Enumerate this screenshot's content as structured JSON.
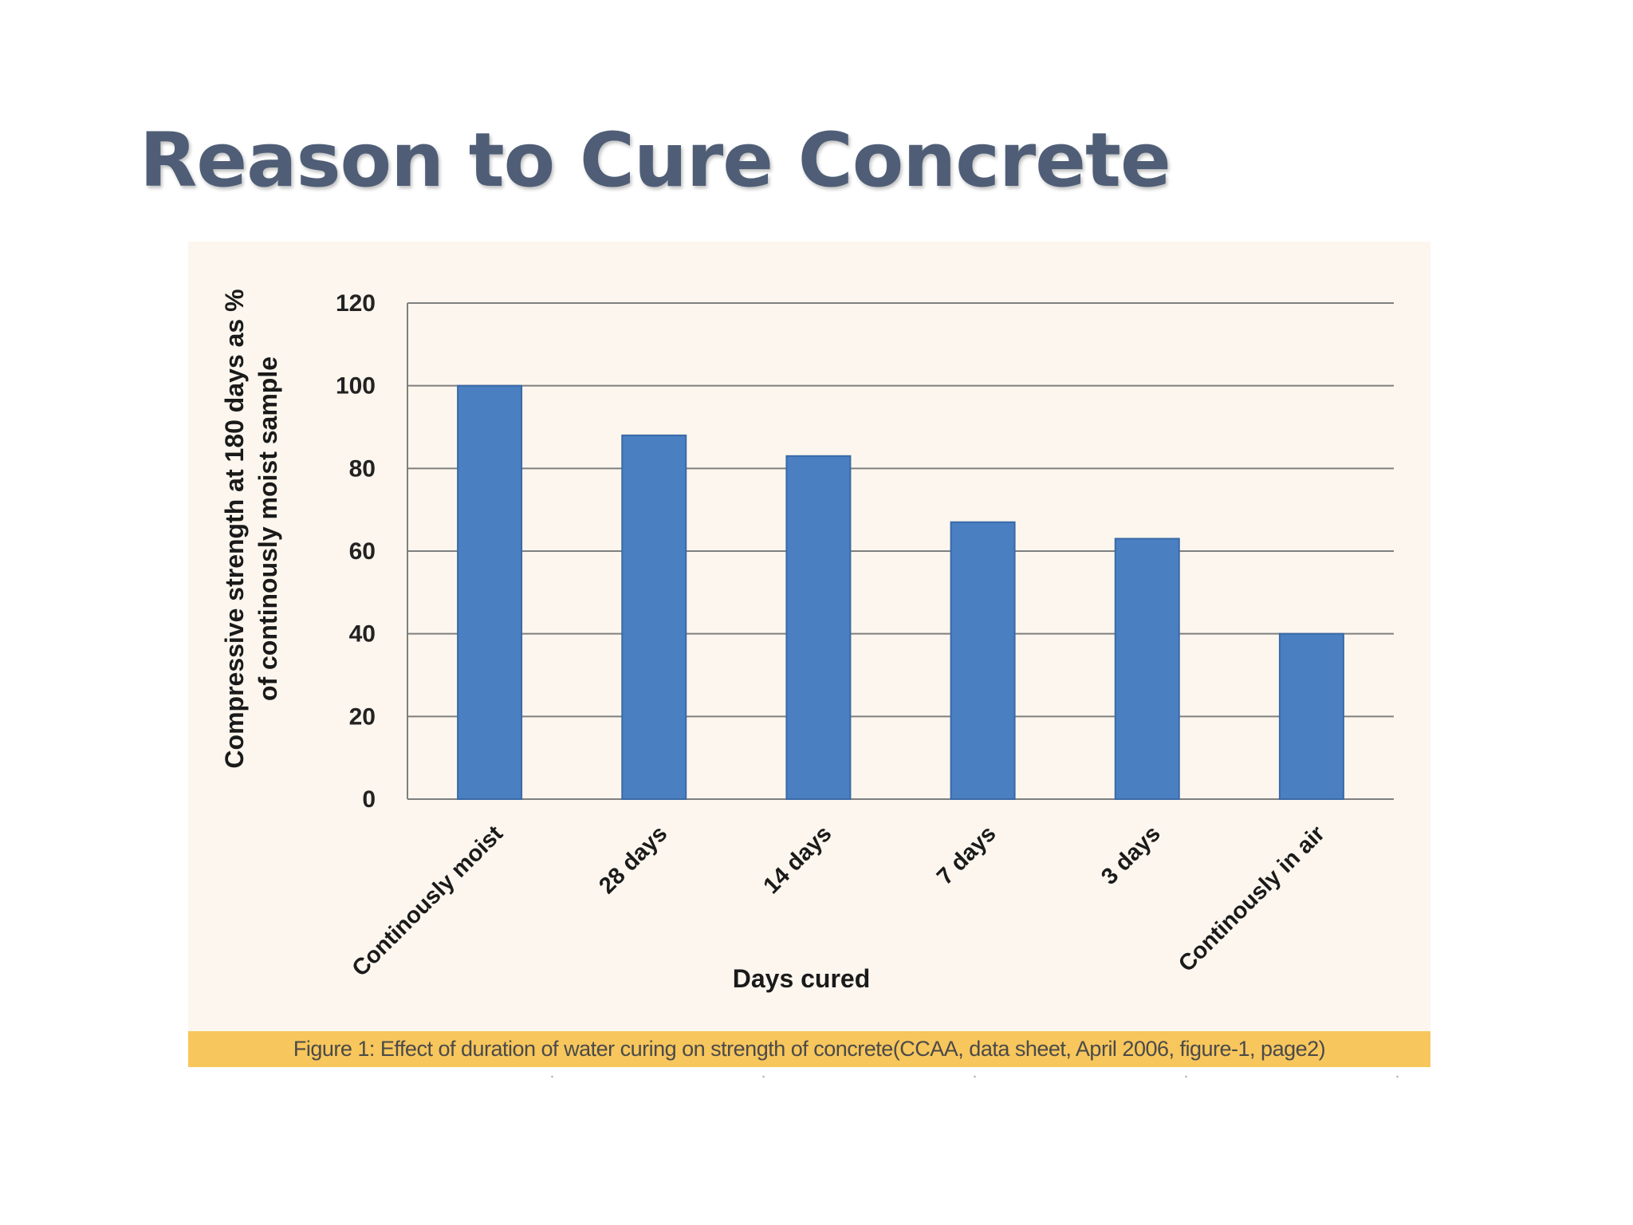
{
  "slide": {
    "title": "Reason to Cure Concrete",
    "caption": "Figure 1: Effect of duration of water curing on strength of concrete(CCAA, data sheet, April 2006, figure-1, page2)"
  },
  "colors": {
    "title": "#4f5e76",
    "panel_background": "#fcf6ee",
    "caption_background": "#f7c65c",
    "bar_fill": "#4a7fc1",
    "bar_stroke": "#3a6aa6",
    "gridline": "#7f7f7f"
  },
  "chart_data": {
    "type": "bar",
    "title": "",
    "xlabel": "Days cured",
    "ylabel_lines": [
      "Compressive strength at 180 days as %",
      "of continously moist sample"
    ],
    "categories": [
      "Continously moist",
      "28 days",
      "14 days",
      "7 days",
      "3 days",
      "Continously in air"
    ],
    "values": [
      100,
      88,
      83,
      67,
      63,
      40
    ],
    "ylim": [
      0,
      120
    ],
    "yticks": [
      0,
      20,
      40,
      60,
      80,
      100,
      120
    ],
    "grid": true,
    "legend": "none"
  }
}
